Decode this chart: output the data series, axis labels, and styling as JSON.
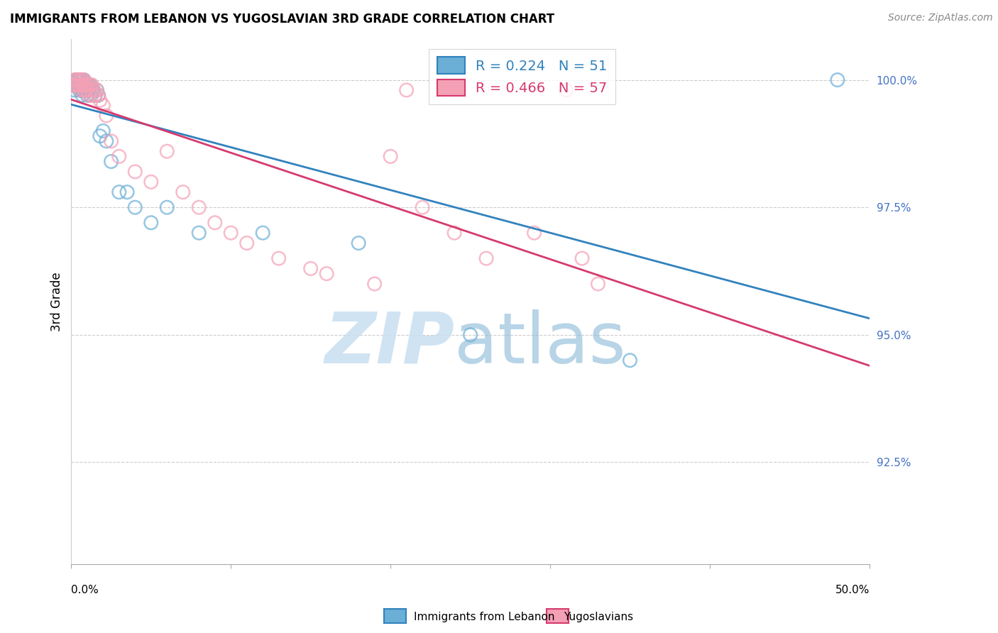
{
  "title": "IMMIGRANTS FROM LEBANON VS YUGOSLAVIAN 3RD GRADE CORRELATION CHART",
  "source": "Source: ZipAtlas.com",
  "ylabel": "3rd Grade",
  "ylabel_right_labels": [
    "100.0%",
    "97.5%",
    "95.0%",
    "92.5%"
  ],
  "ylabel_right_values": [
    1.0,
    0.975,
    0.95,
    0.925
  ],
  "xlim": [
    0.0,
    0.5
  ],
  "ylim": [
    0.905,
    1.008
  ],
  "legend_blue_r": "0.224",
  "legend_blue_n": "51",
  "legend_pink_r": "0.466",
  "legend_pink_n": "57",
  "blue_color": "#6baed6",
  "pink_color": "#f4a0b5",
  "blue_line_color": "#3182bd",
  "pink_line_color": "#d63a6e",
  "blue_x": [
    0.001,
    0.002,
    0.002,
    0.003,
    0.003,
    0.003,
    0.004,
    0.004,
    0.005,
    0.005,
    0.005,
    0.005,
    0.006,
    0.006,
    0.006,
    0.007,
    0.007,
    0.007,
    0.007,
    0.008,
    0.008,
    0.008,
    0.009,
    0.009,
    0.01,
    0.01,
    0.01,
    0.011,
    0.011,
    0.012,
    0.012,
    0.013,
    0.014,
    0.015,
    0.016,
    0.017,
    0.018,
    0.02,
    0.022,
    0.025,
    0.03,
    0.035,
    0.04,
    0.05,
    0.06,
    0.08,
    0.12,
    0.18,
    0.25,
    0.35,
    0.48
  ],
  "blue_y": [
    0.999,
    0.999,
    0.998,
    1.0,
    1.0,
    0.999,
    1.0,
    0.999,
    1.0,
    1.0,
    0.999,
    0.998,
    1.0,
    0.999,
    0.998,
    1.0,
    0.999,
    0.998,
    0.997,
    1.0,
    0.999,
    0.998,
    0.999,
    0.998,
    0.999,
    0.998,
    0.997,
    0.999,
    0.998,
    0.999,
    0.997,
    0.998,
    0.998,
    0.997,
    0.998,
    0.997,
    0.989,
    0.99,
    0.988,
    0.984,
    0.978,
    0.978,
    0.975,
    0.972,
    0.975,
    0.97,
    0.97,
    0.968,
    0.95,
    0.945,
    1.0
  ],
  "pink_x": [
    0.001,
    0.002,
    0.002,
    0.003,
    0.003,
    0.004,
    0.004,
    0.005,
    0.005,
    0.006,
    0.006,
    0.006,
    0.007,
    0.007,
    0.008,
    0.008,
    0.008,
    0.009,
    0.009,
    0.01,
    0.01,
    0.011,
    0.011,
    0.012,
    0.012,
    0.013,
    0.013,
    0.014,
    0.015,
    0.016,
    0.017,
    0.018,
    0.02,
    0.022,
    0.025,
    0.03,
    0.04,
    0.05,
    0.06,
    0.07,
    0.08,
    0.09,
    0.1,
    0.11,
    0.13,
    0.15,
    0.16,
    0.19,
    0.2,
    0.21,
    0.22,
    0.24,
    0.26,
    0.29,
    0.31,
    0.32,
    0.33
  ],
  "pink_y": [
    0.999,
    1.0,
    0.999,
    1.0,
    0.999,
    1.0,
    0.999,
    1.0,
    0.999,
    1.0,
    0.999,
    0.998,
    1.0,
    0.999,
    1.0,
    0.999,
    0.998,
    0.999,
    0.998,
    0.999,
    0.998,
    0.999,
    0.997,
    0.999,
    0.998,
    0.999,
    0.997,
    0.998,
    0.997,
    0.998,
    0.997,
    0.996,
    0.995,
    0.993,
    0.988,
    0.985,
    0.982,
    0.98,
    0.986,
    0.978,
    0.975,
    0.972,
    0.97,
    0.968,
    0.965,
    0.963,
    0.962,
    0.96,
    0.985,
    0.998,
    0.975,
    0.97,
    0.965,
    0.97,
    0.998,
    0.965,
    0.96
  ]
}
